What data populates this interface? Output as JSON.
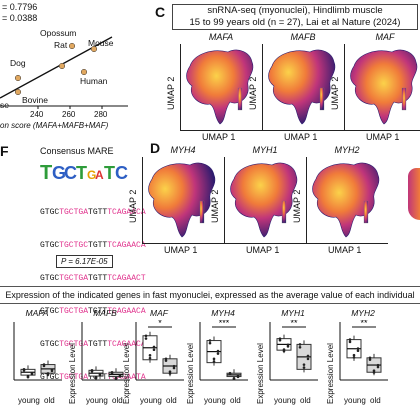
{
  "panel_a": {
    "stats": [
      "= 0.7796",
      "= 0.0388"
    ],
    "species": [
      "Opossum",
      "Rat",
      "Mouse",
      "Dog",
      "Human",
      "Bovine",
      "se"
    ],
    "x_ticks": [
      "240",
      "260",
      "280"
    ],
    "x_label": "on score (MAFA+MAFB+MAF)"
  },
  "panel_b": {
    "letter": "F",
    "title": "Consensus MARE",
    "sequences": [
      [
        "GTGC",
        "TGCTGA",
        "TGTT",
        "TCAGAACA"
      ],
      [
        "GTGC",
        "TGCTGC",
        "TGTT",
        "TCAGAACA"
      ],
      [
        "GTGC",
        "TGCTGA",
        "TGTT",
        "TCAGAACT"
      ],
      [
        "GTGC",
        "TGCTGA",
        "TGTT",
        "TCAGAACA"
      ],
      [
        "GTGC",
        "TGCTGA",
        "TGTT",
        "TCAGAACA"
      ],
      [
        "GTGC",
        "TGCTGA",
        "TGTT",
        "TCAGAATA"
      ]
    ],
    "pvalue": "P = 6.17E-05"
  },
  "panel_c": {
    "letter": "C",
    "info_lines": [
      "snRNA-seq (myonuclei), Hindlimb muscle",
      "15 to 99 years old (n = 27), Lai et al Nature (2024)"
    ],
    "genes": [
      "MAFA",
      "MAFB",
      "MAF"
    ],
    "umap_x": "UMAP 1",
    "umap_y": "UMAP 2"
  },
  "panel_d": {
    "letter": "D",
    "genes": [
      "MYH4",
      "MYH1",
      "MYH2"
    ],
    "umap_x": "UMAP 1",
    "umap_y": "UMAP 2"
  },
  "panel_e": {
    "header": "Expression of the indicated genes in fast myonuclei, expressed as the average value of each individual",
    "ylabel": "Expression Level",
    "groups": [
      "young",
      "old"
    ],
    "plots": [
      {
        "gene": "MAFA",
        "sig": ""
      },
      {
        "gene": "MAFB",
        "sig": ""
      },
      {
        "gene": "MAF",
        "sig": "*"
      },
      {
        "gene": "MYH4",
        "sig": "***"
      },
      {
        "gene": "MYH1",
        "sig": "**"
      },
      {
        "gene": "MYH2",
        "sig": "**"
      }
    ]
  },
  "colors": {
    "umap_low": "#2c1b6e",
    "umap_mid": "#c0357a",
    "umap_high": "#fbd24a",
    "pink": "#e0318c",
    "accent_point": "#e1a860"
  }
}
